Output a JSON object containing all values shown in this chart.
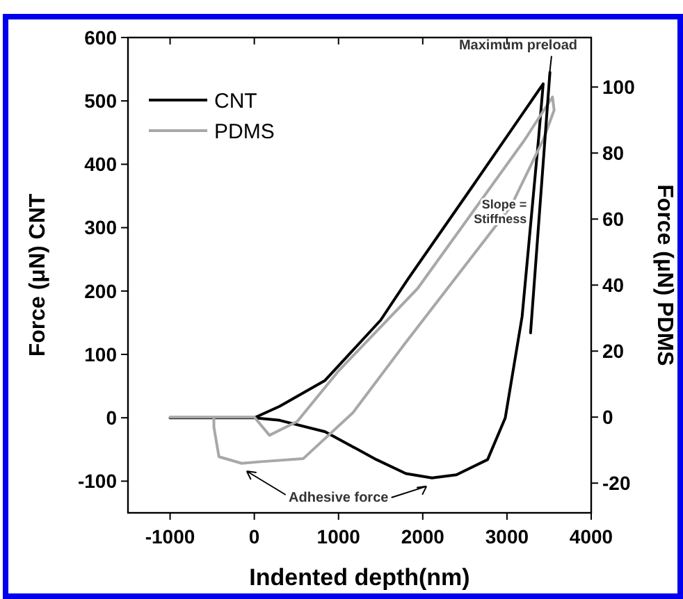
{
  "chart_data": {
    "type": "line",
    "xlabel": "Indented depth(nm)",
    "ylabel": "Force (μN) CNT",
    "y2label": "Force (μN) PDMS",
    "xlim": [
      -1500,
      4000
    ],
    "xticks": [
      -1000,
      0,
      1000,
      2000,
      3000,
      4000
    ],
    "ylim": [
      -150,
      600
    ],
    "yticks": [
      -100,
      0,
      100,
      200,
      300,
      400,
      500,
      600
    ],
    "y2lim": [
      -29,
      115
    ],
    "y2ticks": [
      -20,
      0,
      20,
      40,
      60,
      80,
      100
    ],
    "grid": false,
    "legend": "top left",
    "marker": "none",
    "line_style": "solid",
    "series": [
      {
        "name": "CNT",
        "color": "#000000",
        "x": [
          -1000,
          -500,
          0,
          300,
          840,
          1500,
          1830,
          2600,
          3430,
          3375,
          3180,
          2980,
          2770,
          2400,
          2110,
          1800,
          1450,
          840,
          300,
          0
        ],
        "values": [
          0,
          0,
          0,
          18,
          59,
          154,
          220,
          367,
          527,
          440,
          160,
          0,
          -66,
          -90,
          -95,
          -88,
          -66,
          -22,
          -4,
          0
        ]
      },
      {
        "name": "PDMS",
        "color": "#a8a8a8",
        "axis": "y2",
        "x": [
          -1000,
          -480,
          0,
          180,
          510,
          1000,
          1940,
          3210,
          3540,
          3560,
          3430,
          3050,
          1780,
          1170,
          580,
          80,
          -150,
          -420,
          -480,
          -480
        ],
        "values": [
          0,
          0,
          0,
          -5.5,
          -1.3,
          14,
          39,
          84,
          97,
          93,
          84,
          64,
          22,
          1.3,
          -12.6,
          -13.5,
          -14,
          -12,
          -3,
          0
        ]
      },
      {
        "color": "#000000",
        "x": [
          3280,
          3510
        ],
        "values": [
          134,
          545
        ]
      }
    ],
    "annotations": [
      {
        "text": "Maximum preload",
        "x": 3430,
        "y": 527
      },
      {
        "text": "Slope = Stiffness",
        "x": 3300,
        "y": 300
      },
      {
        "text": "Adhesive force",
        "x": 2110,
        "y": -95
      }
    ]
  }
}
